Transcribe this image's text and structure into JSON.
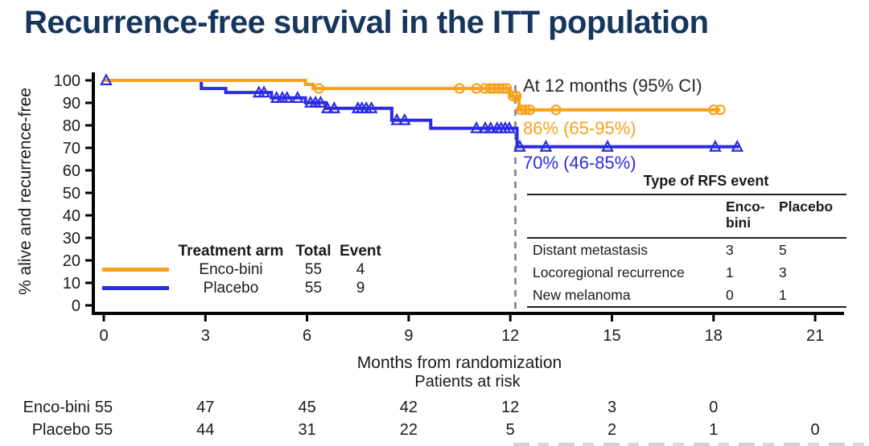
{
  "page_title": "Recurrence-free survival in the ITT population",
  "colors": {
    "enco_bini": "#F7A11B",
    "placebo": "#2B2BE2",
    "title": "#17365D",
    "axis": "#000000",
    "dashed_line": "#8F8F8F",
    "annotation_heading": "#262626"
  },
  "chart_data": {
    "type": "line",
    "subtype": "kaplan-meier-step",
    "title": "Recurrence-free survival in the ITT population",
    "xlabel": "Months from randomization",
    "ylabel": "% alive and recurrence-free",
    "xlim": [
      0,
      21
    ],
    "ylim": [
      0,
      100
    ],
    "xticks": [
      0,
      3,
      6,
      9,
      12,
      15,
      18,
      21
    ],
    "yticks": [
      0,
      10,
      20,
      30,
      40,
      50,
      60,
      70,
      80,
      90,
      100
    ],
    "grid": false,
    "dashed_reference_line_x": 12.15,
    "series": [
      {
        "name": "Enco-bini",
        "color": "#F7A11B",
        "marker": "open-circle",
        "steps": [
          [
            0,
            100
          ],
          [
            5.95,
            100
          ],
          [
            5.95,
            98.2
          ],
          [
            6.18,
            98.2
          ],
          [
            6.18,
            96.4
          ],
          [
            11.98,
            96.4
          ],
          [
            11.98,
            93.0
          ],
          [
            12.26,
            93.0
          ],
          [
            12.26,
            86.9
          ],
          [
            18.2,
            86.9
          ]
        ],
        "censors": [
          [
            6.35,
            96.4
          ],
          [
            10.5,
            96.4
          ],
          [
            11.0,
            96.4
          ],
          [
            11.25,
            96.4
          ],
          [
            11.4,
            96.4
          ],
          [
            11.52,
            96.4
          ],
          [
            11.65,
            96.4
          ],
          [
            11.78,
            96.4
          ],
          [
            11.9,
            96.4
          ],
          [
            12.08,
            93.0
          ],
          [
            12.18,
            93.0
          ],
          [
            12.32,
            86.9
          ],
          [
            12.45,
            86.9
          ],
          [
            12.58,
            86.9
          ],
          [
            13.35,
            86.9
          ],
          [
            18.0,
            86.9
          ],
          [
            18.2,
            86.9
          ]
        ]
      },
      {
        "name": "Placebo",
        "color": "#2B2BE2",
        "marker": "open-triangle",
        "steps": [
          [
            0,
            100
          ],
          [
            2.88,
            100
          ],
          [
            2.88,
            96.4
          ],
          [
            3.6,
            96.4
          ],
          [
            3.6,
            94.6
          ],
          [
            4.95,
            94.6
          ],
          [
            4.95,
            92.2
          ],
          [
            5.95,
            92.2
          ],
          [
            5.95,
            90.1
          ],
          [
            6.55,
            90.1
          ],
          [
            6.55,
            87.6
          ],
          [
            8.5,
            87.6
          ],
          [
            8.5,
            82.3
          ],
          [
            9.65,
            82.3
          ],
          [
            9.65,
            78.7
          ],
          [
            12.2,
            78.7
          ],
          [
            12.2,
            70.5
          ],
          [
            18.75,
            70.5
          ]
        ],
        "censors": [
          [
            0.07,
            100
          ],
          [
            4.58,
            94.6
          ],
          [
            4.73,
            94.6
          ],
          [
            5.1,
            92.2
          ],
          [
            5.27,
            92.2
          ],
          [
            5.41,
            92.2
          ],
          [
            5.72,
            92.2
          ],
          [
            6.1,
            90.1
          ],
          [
            6.25,
            90.1
          ],
          [
            6.4,
            90.1
          ],
          [
            6.6,
            87.6
          ],
          [
            6.8,
            87.6
          ],
          [
            7.5,
            87.6
          ],
          [
            7.62,
            87.6
          ],
          [
            7.75,
            87.6
          ],
          [
            7.9,
            87.6
          ],
          [
            8.65,
            82.3
          ],
          [
            8.88,
            82.3
          ],
          [
            11.0,
            78.7
          ],
          [
            11.26,
            78.7
          ],
          [
            11.42,
            78.7
          ],
          [
            11.61,
            78.7
          ],
          [
            11.73,
            78.7
          ],
          [
            11.85,
            78.7
          ],
          [
            11.97,
            78.7
          ],
          [
            12.28,
            70.5
          ],
          [
            13.05,
            70.5
          ],
          [
            14.87,
            70.5
          ],
          [
            18.05,
            70.5
          ],
          [
            18.7,
            70.5
          ]
        ]
      }
    ]
  },
  "annotation": {
    "heading": "At 12 months (95% CI)",
    "enco_value": "86% (65-95%)",
    "placebo_value": "70% (46-85%)"
  },
  "legend": {
    "col_arm": "Treatment arm",
    "col_total": "Total",
    "col_event": "Event",
    "rows": [
      {
        "arm": "Enco-bini",
        "total": "55",
        "event": "4"
      },
      {
        "arm": "Placebo",
        "total": "55",
        "event": "9"
      }
    ]
  },
  "rfs_table": {
    "title": "Type of RFS event",
    "columns": [
      "Enco-bini",
      "Placebo"
    ],
    "rows": [
      {
        "label": "Distant metastasis",
        "enco": "3",
        "placebo": "5"
      },
      {
        "label": "Locoregional recurrence",
        "enco": "1",
        "placebo": "3"
      },
      {
        "label": "New melanoma",
        "enco": "0",
        "placebo": "1"
      }
    ]
  },
  "risk_table": {
    "heading": "Patients at risk",
    "rows": [
      {
        "name": "Enco-bini",
        "values": [
          55,
          47,
          45,
          42,
          12,
          3,
          0
        ]
      },
      {
        "name": "Placebo",
        "values": [
          55,
          44,
          31,
          22,
          5,
          2,
          1,
          0
        ]
      }
    ]
  }
}
